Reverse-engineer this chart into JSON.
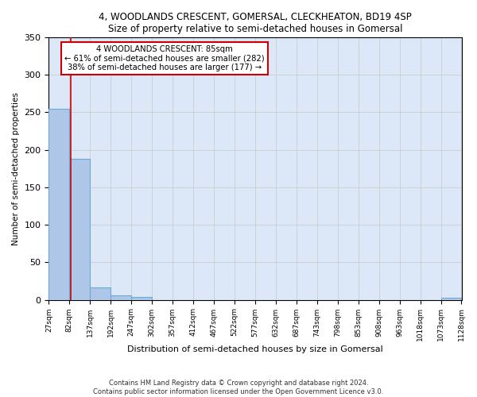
{
  "title": "4, WOODLANDS CRESCENT, GOMERSAL, CLECKHEATON, BD19 4SP",
  "subtitle": "Size of property relative to semi-detached houses in Gomersal",
  "xlabel": "Distribution of semi-detached houses by size in Gomersal",
  "ylabel": "Number of semi-detached properties",
  "bin_edges": [
    27,
    82,
    137,
    192,
    247,
    302,
    357,
    412,
    467,
    522,
    577,
    632,
    687,
    743,
    798,
    853,
    908,
    963,
    1018,
    1073,
    1128
  ],
  "bar_heights": [
    255,
    188,
    16,
    6,
    4,
    0,
    0,
    0,
    0,
    0,
    0,
    0,
    0,
    0,
    0,
    0,
    0,
    0,
    0,
    3
  ],
  "bar_color": "#aec6e8",
  "bar_edgecolor": "#6aaad4",
  "property_size": 85,
  "property_label": "4 WOODLANDS CRESCENT: 85sqm",
  "smaller_pct": 61,
  "smaller_n": 282,
  "larger_pct": 38,
  "larger_n": 177,
  "annotation_box_color": "#cc0000",
  "property_line_color": "#cc0000",
  "grid_color": "#cccccc",
  "background_color": "#dce8f8",
  "ylim": [
    0,
    350
  ],
  "yticks": [
    0,
    50,
    100,
    150,
    200,
    250,
    300,
    350
  ],
  "tick_labels": [
    "27sqm",
    "82sqm",
    "137sqm",
    "192sqm",
    "247sqm",
    "302sqm",
    "357sqm",
    "412sqm",
    "467sqm",
    "522sqm",
    "577sqm",
    "632sqm",
    "687sqm",
    "743sqm",
    "798sqm",
    "853sqm",
    "908sqm",
    "963sqm",
    "1018sqm",
    "1073sqm",
    "1128sqm"
  ],
  "footer": "Contains HM Land Registry data © Crown copyright and database right 2024.\nContains public sector information licensed under the Open Government Licence v3.0."
}
